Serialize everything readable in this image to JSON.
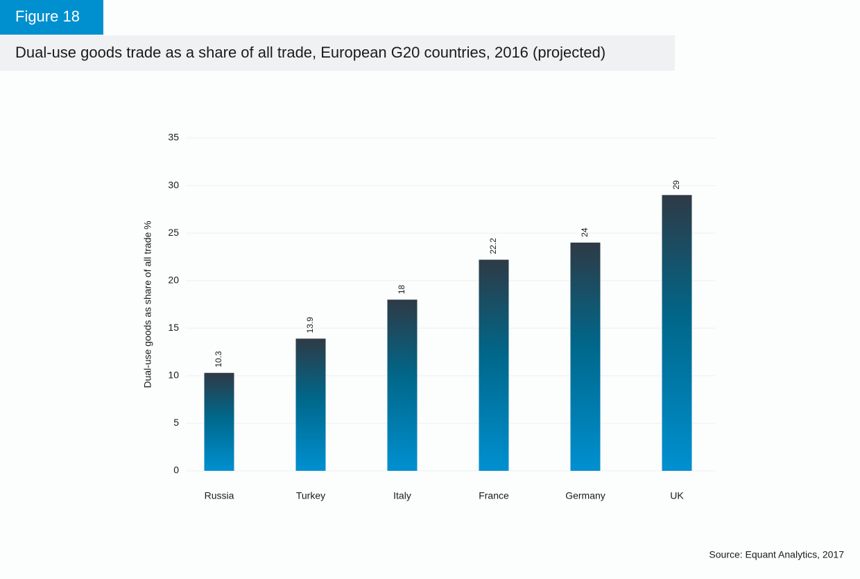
{
  "chart_data": {
    "type": "bar",
    "figure_label": "Figure 18",
    "title": "Dual-use goods trade as a share of all trade, European G20 countries, 2016 (projected)",
    "y_label": "Dual-use goods as share of all trade %",
    "source": "Source: Equant Analytics, 2017",
    "categories": [
      "Russia",
      "Turkey",
      "Italy",
      "France",
      "Germany",
      "UK"
    ],
    "values": [
      10.3,
      13.9,
      18,
      22.2,
      24,
      29
    ],
    "color": "#0090d0",
    "ylim": [
      0,
      35
    ],
    "yticks": [
      0,
      5,
      10,
      15,
      20,
      25,
      30,
      35
    ],
    "grid": true
  }
}
